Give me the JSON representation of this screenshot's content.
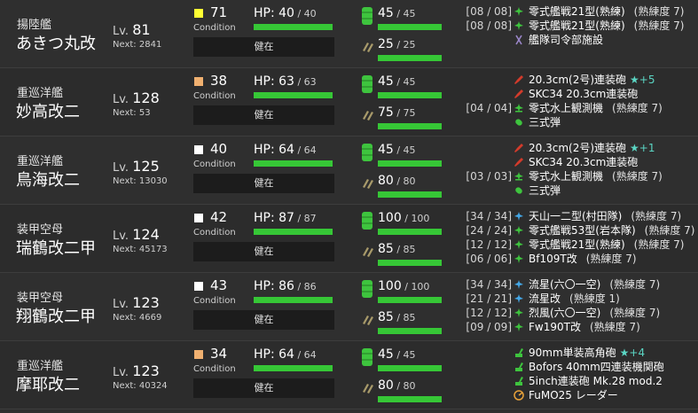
{
  "labels": {
    "hp": "HP:",
    "condition": "Condition",
    "lv": "Lv.",
    "next": "Next:",
    "slash": " / "
  },
  "ships": [
    {
      "type": "揚陸艦",
      "name": "あきつ丸改",
      "level": "81",
      "next": "2841",
      "cond": "71",
      "cond_color": "#ffff33",
      "hp": "40",
      "hp_max": "40",
      "hp_ratio": 1.0,
      "status": "健在",
      "fuel": "45",
      "fuel_max": "45",
      "ammo": "25",
      "ammo_max": "25",
      "equip": [
        {
          "slot": "[08 / 08]",
          "icon": "fighter-icon",
          "name": "零式艦戦21型(熟練)",
          "prof": "(熟練度 7)",
          "star": ""
        },
        {
          "slot": "[08 / 08]",
          "icon": "fighter-icon",
          "name": "零式艦戦21型(熟練)",
          "prof": "(熟練度 7)",
          "star": ""
        },
        {
          "slot": "",
          "icon": "command-facility-icon",
          "name": "艦隊司令部施設",
          "prof": "",
          "star": ""
        }
      ]
    },
    {
      "type": "重巡洋艦",
      "name": "妙高改二",
      "level": "128",
      "next": "53",
      "cond": "38",
      "cond_color": "#f0b070",
      "hp": "63",
      "hp_max": "63",
      "hp_ratio": 1.0,
      "status": "健在",
      "fuel": "45",
      "fuel_max": "45",
      "ammo": "75",
      "ammo_max": "75",
      "equip": [
        {
          "slot": "",
          "icon": "main-gun-icon",
          "name": "20.3cm(2号)連装砲",
          "prof": "",
          "star": "★+5"
        },
        {
          "slot": "",
          "icon": "main-gun-icon",
          "name": "SKC34 20.3cm連装砲",
          "prof": "",
          "star": ""
        },
        {
          "slot": "[04 / 04]",
          "icon": "seaplane-icon",
          "name": "零式水上観測機",
          "prof": "(熟練度 7)",
          "star": ""
        },
        {
          "slot": "",
          "icon": "ap-shell-icon",
          "name": "三式弾",
          "prof": "",
          "star": ""
        }
      ]
    },
    {
      "type": "重巡洋艦",
      "name": "鳥海改二",
      "level": "125",
      "next": "13030",
      "cond": "40",
      "cond_color": "#ffffff",
      "hp": "64",
      "hp_max": "64",
      "hp_ratio": 1.0,
      "status": "健在",
      "fuel": "45",
      "fuel_max": "45",
      "ammo": "80",
      "ammo_max": "80",
      "equip": [
        {
          "slot": "",
          "icon": "main-gun-icon",
          "name": "20.3cm(2号)連装砲",
          "prof": "",
          "star": "★+1"
        },
        {
          "slot": "",
          "icon": "main-gun-icon",
          "name": "SKC34 20.3cm連装砲",
          "prof": "",
          "star": ""
        },
        {
          "slot": "[03 / 03]",
          "icon": "seaplane-icon",
          "name": "零式水上観測機",
          "prof": "(熟練度 7)",
          "star": ""
        },
        {
          "slot": "",
          "icon": "ap-shell-icon",
          "name": "三式弾",
          "prof": "",
          "star": ""
        }
      ]
    },
    {
      "type": "装甲空母",
      "name": "瑞鶴改二甲",
      "level": "124",
      "next": "45173",
      "cond": "42",
      "cond_color": "#ffffff",
      "hp": "87",
      "hp_max": "87",
      "hp_ratio": 1.0,
      "status": "健在",
      "fuel": "100",
      "fuel_max": "100",
      "ammo": "85",
      "ammo_max": "85",
      "equip": [
        {
          "slot": "[34 / 34]",
          "icon": "torpedo-bomber-icon",
          "name": "天山一二型(村田隊)",
          "prof": "(熟練度 7)",
          "star": ""
        },
        {
          "slot": "[24 / 24]",
          "icon": "fighter-icon",
          "name": "零式艦戦53型(岩本隊)",
          "prof": "(熟練度 7)",
          "star": ""
        },
        {
          "slot": "[12 / 12]",
          "icon": "fighter-icon",
          "name": "零式艦戦21型(熟練)",
          "prof": "(熟練度 7)",
          "star": ""
        },
        {
          "slot": "[06 / 06]",
          "icon": "fighter-icon",
          "name": "Bf109T改",
          "prof": "(熟練度 7)",
          "star": ""
        }
      ]
    },
    {
      "type": "装甲空母",
      "name": "翔鶴改二甲",
      "level": "123",
      "next": "4669",
      "cond": "43",
      "cond_color": "#ffffff",
      "hp": "86",
      "hp_max": "86",
      "hp_ratio": 1.0,
      "status": "健在",
      "fuel": "100",
      "fuel_max": "100",
      "ammo": "85",
      "ammo_max": "85",
      "equip": [
        {
          "slot": "[34 / 34]",
          "icon": "torpedo-bomber-icon",
          "name": "流星(六〇一空)",
          "prof": "(熟練度 7)",
          "star": ""
        },
        {
          "slot": "[21 / 21]",
          "icon": "torpedo-bomber-icon",
          "name": "流星改",
          "prof": "(熟練度 1)",
          "star": ""
        },
        {
          "slot": "[12 / 12]",
          "icon": "fighter-icon",
          "name": "烈風(六〇一空)",
          "prof": "(熟練度 7)",
          "star": ""
        },
        {
          "slot": "[09 / 09]",
          "icon": "fighter-icon",
          "name": "Fw190T改",
          "prof": "(熟練度 7)",
          "star": ""
        }
      ]
    },
    {
      "type": "重巡洋艦",
      "name": "摩耶改二",
      "level": "123",
      "next": "40324",
      "cond": "34",
      "cond_color": "#f0b070",
      "hp": "64",
      "hp_max": "64",
      "hp_ratio": 1.0,
      "status": "健在",
      "fuel": "45",
      "fuel_max": "45",
      "ammo": "80",
      "ammo_max": "80",
      "equip": [
        {
          "slot": "",
          "icon": "aa-gun-icon",
          "name": "90mm単装高角砲",
          "prof": "",
          "star": "★+4"
        },
        {
          "slot": "",
          "icon": "aa-gun-icon",
          "name": "Bofors 40mm四連装機関砲",
          "prof": "",
          "star": ""
        },
        {
          "slot": "",
          "icon": "aa-gun-icon",
          "name": "5inch連装砲 Mk.28 mod.2",
          "prof": "",
          "star": ""
        },
        {
          "slot": "",
          "icon": "radar-icon",
          "name": "FuMO25 レーダー",
          "prof": "",
          "star": ""
        }
      ]
    }
  ]
}
